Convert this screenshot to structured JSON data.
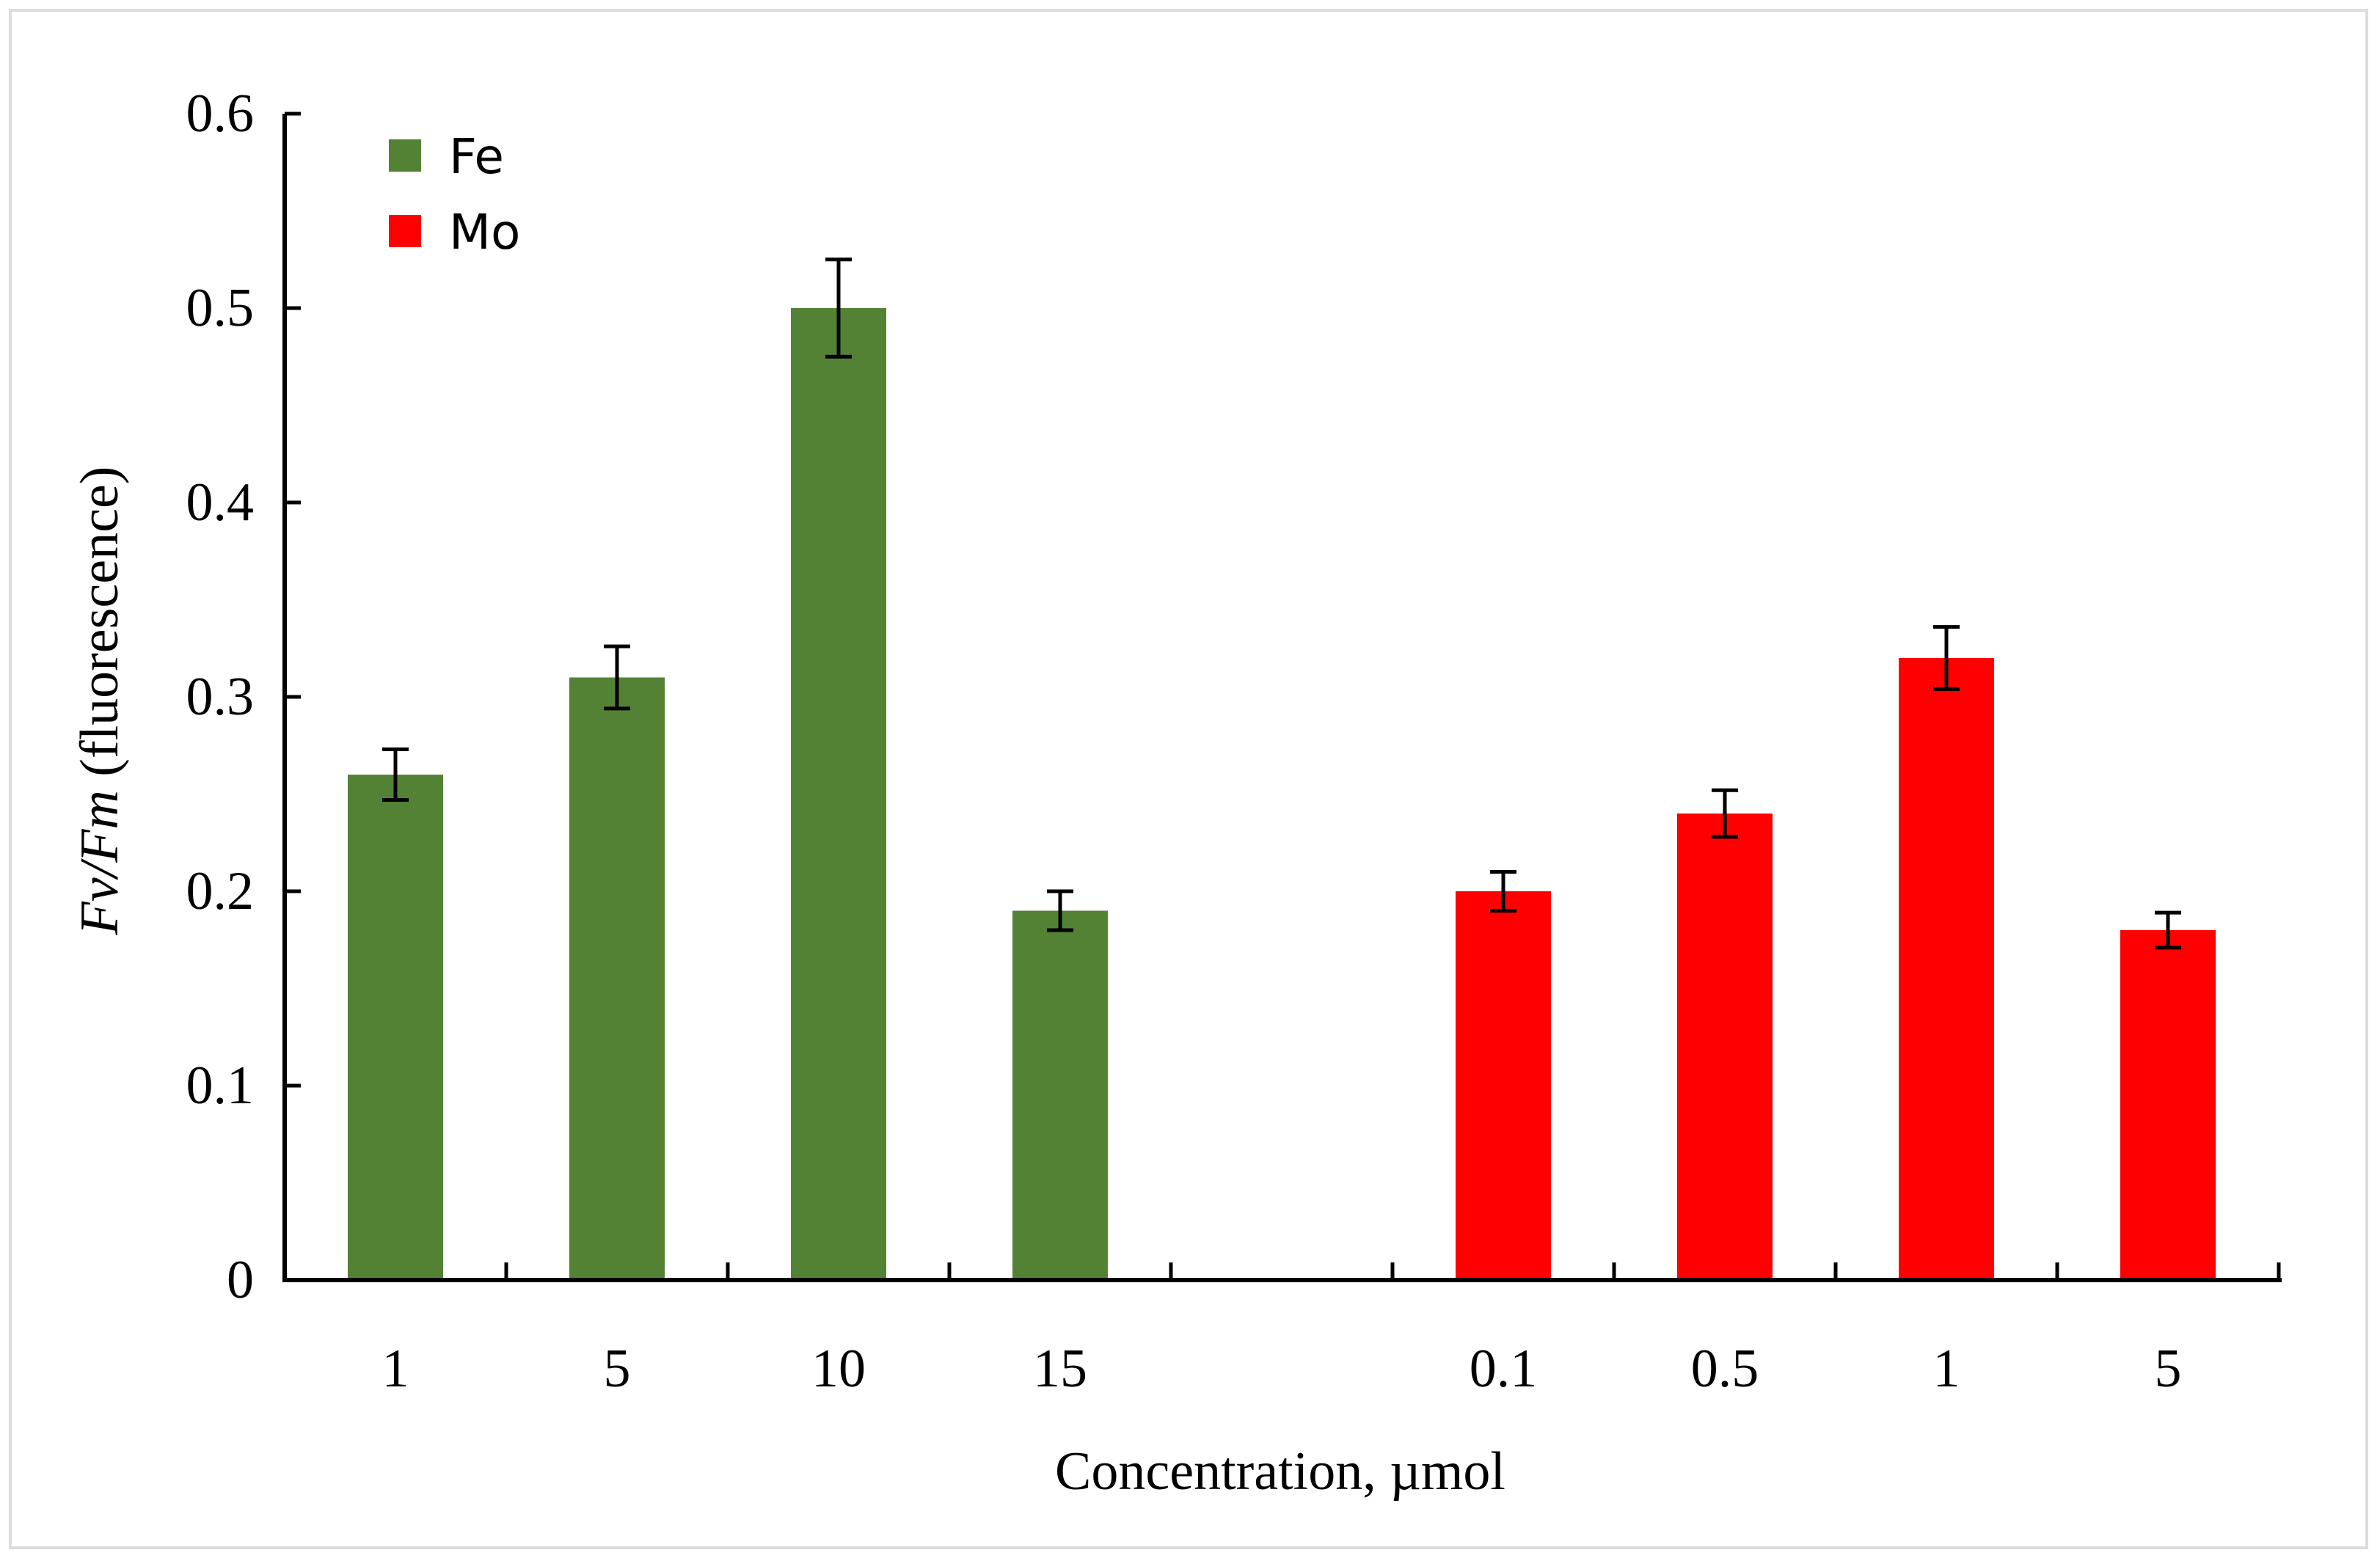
{
  "chart_data": {
    "type": "bar",
    "title": "",
    "ylabel_italic": "Fv/Fm",
    "ylabel_rest": " (fluorescence)",
    "xlabel": "Concentration, µmol",
    "ylim": [
      0,
      0.6
    ],
    "yticks": [
      "0",
      "0.1",
      "0.2",
      "0.3",
      "0.4",
      "0.5",
      "0.6"
    ],
    "ytick_values": [
      0,
      0.1,
      0.2,
      0.3,
      0.4,
      0.5,
      0.6
    ],
    "legend_position": "top-left",
    "series": [
      {
        "name": "Fe",
        "color": "#548235",
        "categories": [
          "1",
          "5",
          "10",
          "15"
        ],
        "values": [
          0.26,
          0.31,
          0.5,
          0.19
        ],
        "errors": [
          0.013,
          0.016,
          0.025,
          0.01
        ]
      },
      {
        "name": "Mo",
        "color": "#ff0000",
        "categories": [
          "0.1",
          "0.5",
          "1",
          "5"
        ],
        "values": [
          0.2,
          0.24,
          0.32,
          0.18
        ],
        "errors": [
          0.01,
          0.012,
          0.016,
          0.009
        ]
      }
    ]
  }
}
